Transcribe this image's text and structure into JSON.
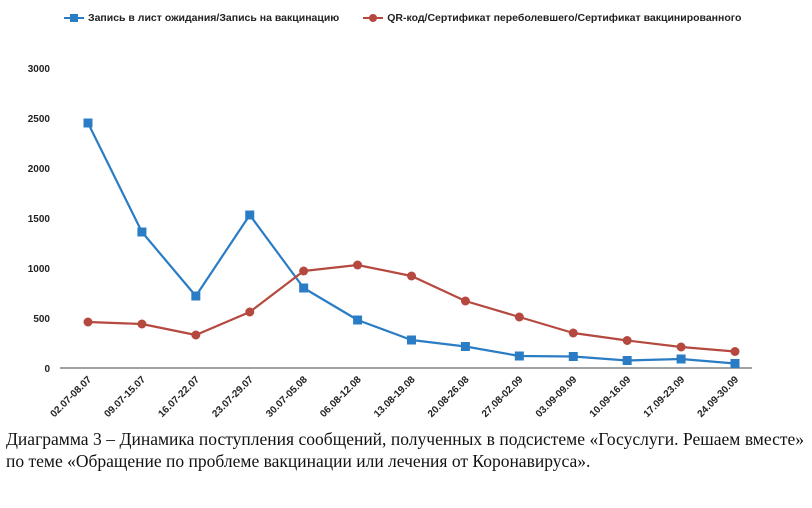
{
  "colors": {
    "series1": "#2a7dc4",
    "series2": "#b5493f",
    "axis": "#444444"
  },
  "legend": {
    "series1_label": "Запись в лист ожидания/Запись на вакцинацию",
    "series2_label": "QR-код/Сертификат переболевшего/Сертификат вакцинированного"
  },
  "caption": {
    "line1": "Диаграмма 3 – Динамика поступления сообщений, полученных в подсистеме «Госуслуги. Решаем вместе» по теме «Обращение по проблеме вакцинации или лечения от Коронавируса»."
  },
  "chart_data": {
    "type": "line",
    "title": "",
    "xlabel": "",
    "ylabel": "",
    "ylim": [
      0,
      3000
    ],
    "yticks": [
      0,
      500,
      1000,
      1500,
      2000,
      2500,
      3000
    ],
    "grid": false,
    "legend_position": "top",
    "categories": [
      "02.07-08.07",
      "09.07-15.07",
      "16.07-22.07",
      "23.07-29.07",
      "30.07-05.08",
      "06.08-12.08",
      "13.08-19.08",
      "20.08-26.08",
      "27.08-02.09",
      "03.09-09.09",
      "10.09-16.09",
      "17.09-23.09",
      "24.09-30.09"
    ],
    "series": [
      {
        "name": "Запись в лист ожидания/Запись на вакцинацию",
        "marker": "square",
        "values": [
          2450,
          1360,
          720,
          1530,
          800,
          480,
          280,
          215,
          120,
          115,
          75,
          90,
          45
        ]
      },
      {
        "name": "QR-код/Сертификат переболевшего/Сертификат вакцинированного",
        "marker": "circle",
        "values": [
          460,
          440,
          330,
          560,
          970,
          1030,
          920,
          670,
          510,
          350,
          275,
          210,
          165
        ]
      }
    ]
  }
}
